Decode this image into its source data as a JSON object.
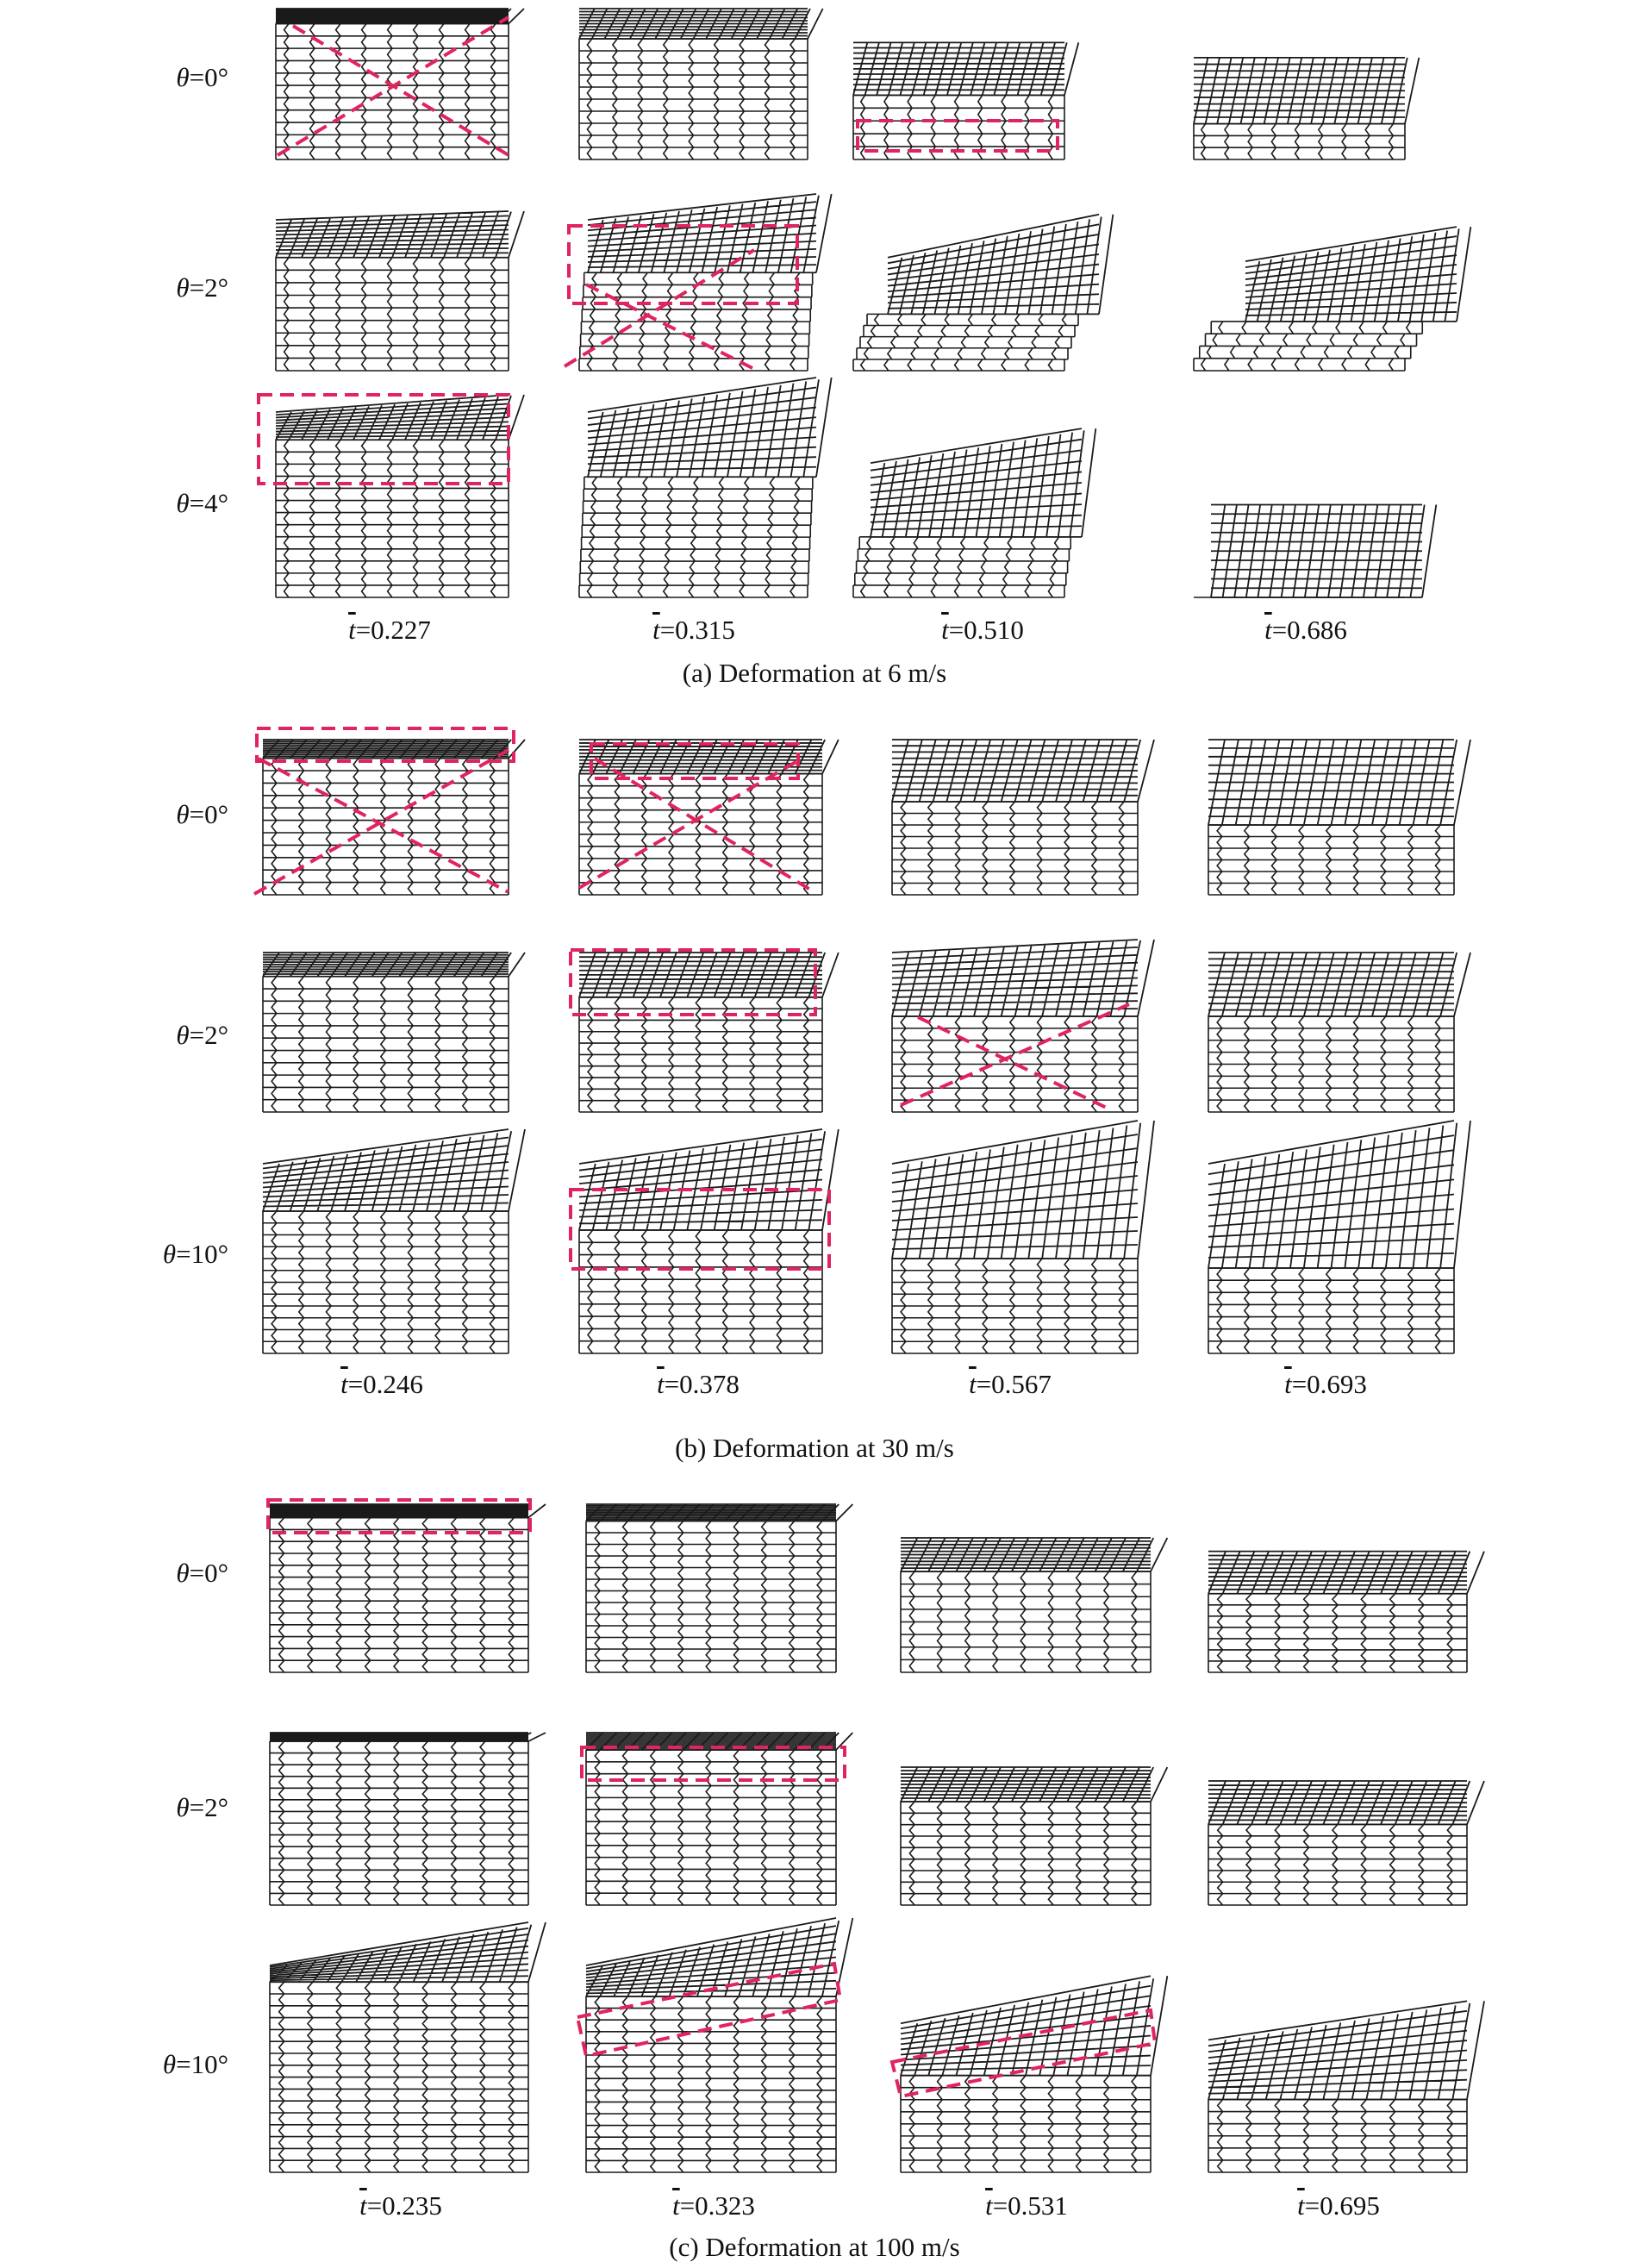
{
  "panels": [
    {
      "caption": "(a) Deformation at 6 m/s",
      "rows": [
        {
          "theta": "0°"
        },
        {
          "theta": "2°"
        },
        {
          "theta": "4°"
        }
      ],
      "times": [
        "0.227",
        "0.315",
        "0.510",
        "0.686"
      ]
    },
    {
      "caption": "(b) Deformation at 30 m/s",
      "rows": [
        {
          "theta": "0°"
        },
        {
          "theta": "2°"
        },
        {
          "theta": "10°"
        }
      ],
      "times": [
        "0.246",
        "0.378",
        "0.567",
        "0.693"
      ]
    },
    {
      "caption": "(c) Deformation at 100 m/s",
      "rows": [
        {
          "theta": "0°"
        },
        {
          "theta": "2°"
        },
        {
          "theta": "10°"
        }
      ],
      "times": [
        "0.235",
        "0.323",
        "0.531",
        "0.695"
      ]
    }
  ],
  "symbols": {
    "theta": "θ",
    "t": "t",
    "eq": "="
  },
  "colors": {
    "lattice": "#1a1a1a",
    "highlight": "#e0245e",
    "background": "#ffffff"
  }
}
